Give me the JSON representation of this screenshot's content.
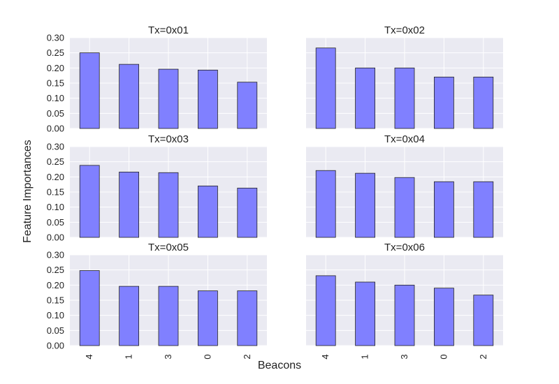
{
  "figure": {
    "xlabel": "Beacons",
    "ylabel": "Feature Importances",
    "background": "#eaeaf2",
    "bar_color": "#8080ff"
  },
  "chart_data": [
    {
      "type": "bar",
      "title": "Tx=0x01",
      "categories": [
        "4",
        "1",
        "3",
        "0",
        "2"
      ],
      "values": [
        0.25,
        0.212,
        0.196,
        0.193,
        0.153
      ],
      "ylim": [
        0,
        0.3
      ],
      "yticks": [
        "0.00",
        "0.05",
        "0.10",
        "0.15",
        "0.20",
        "0.25",
        "0.30"
      ],
      "show_yticks": true,
      "show_xticks": false
    },
    {
      "type": "bar",
      "title": "Tx=0x02",
      "categories": [
        "4",
        "1",
        "3",
        "0",
        "2"
      ],
      "values": [
        0.266,
        0.2,
        0.2,
        0.17,
        0.17
      ],
      "ylim": [
        0,
        0.3
      ],
      "yticks": [
        "0.00",
        "0.05",
        "0.10",
        "0.15",
        "0.20",
        "0.25",
        "0.30"
      ],
      "show_yticks": false,
      "show_xticks": false
    },
    {
      "type": "bar",
      "title": "Tx=0x03",
      "categories": [
        "4",
        "1",
        "3",
        "0",
        "2"
      ],
      "values": [
        0.238,
        0.216,
        0.214,
        0.17,
        0.163
      ],
      "ylim": [
        0,
        0.3
      ],
      "yticks": [
        "0.00",
        "0.05",
        "0.10",
        "0.15",
        "0.20",
        "0.25",
        "0.30"
      ],
      "show_yticks": true,
      "show_xticks": false
    },
    {
      "type": "bar",
      "title": "Tx=0x04",
      "categories": [
        "4",
        "1",
        "3",
        "0",
        "2"
      ],
      "values": [
        0.221,
        0.212,
        0.198,
        0.184,
        0.184
      ],
      "ylim": [
        0,
        0.3
      ],
      "yticks": [
        "0.00",
        "0.05",
        "0.10",
        "0.15",
        "0.20",
        "0.25",
        "0.30"
      ],
      "show_yticks": false,
      "show_xticks": false
    },
    {
      "type": "bar",
      "title": "Tx=0x05",
      "categories": [
        "4",
        "1",
        "3",
        "0",
        "2"
      ],
      "values": [
        0.248,
        0.196,
        0.196,
        0.181,
        0.181
      ],
      "ylim": [
        0,
        0.3
      ],
      "yticks": [
        "0.00",
        "0.05",
        "0.10",
        "0.15",
        "0.20",
        "0.25",
        "0.30"
      ],
      "show_yticks": true,
      "show_xticks": true
    },
    {
      "type": "bar",
      "title": "Tx=0x06",
      "categories": [
        "4",
        "1",
        "3",
        "0",
        "2"
      ],
      "values": [
        0.231,
        0.21,
        0.2,
        0.19,
        0.167
      ],
      "ylim": [
        0,
        0.3
      ],
      "yticks": [
        "0.00",
        "0.05",
        "0.10",
        "0.15",
        "0.20",
        "0.25",
        "0.30"
      ],
      "show_yticks": false,
      "show_xticks": true
    }
  ]
}
